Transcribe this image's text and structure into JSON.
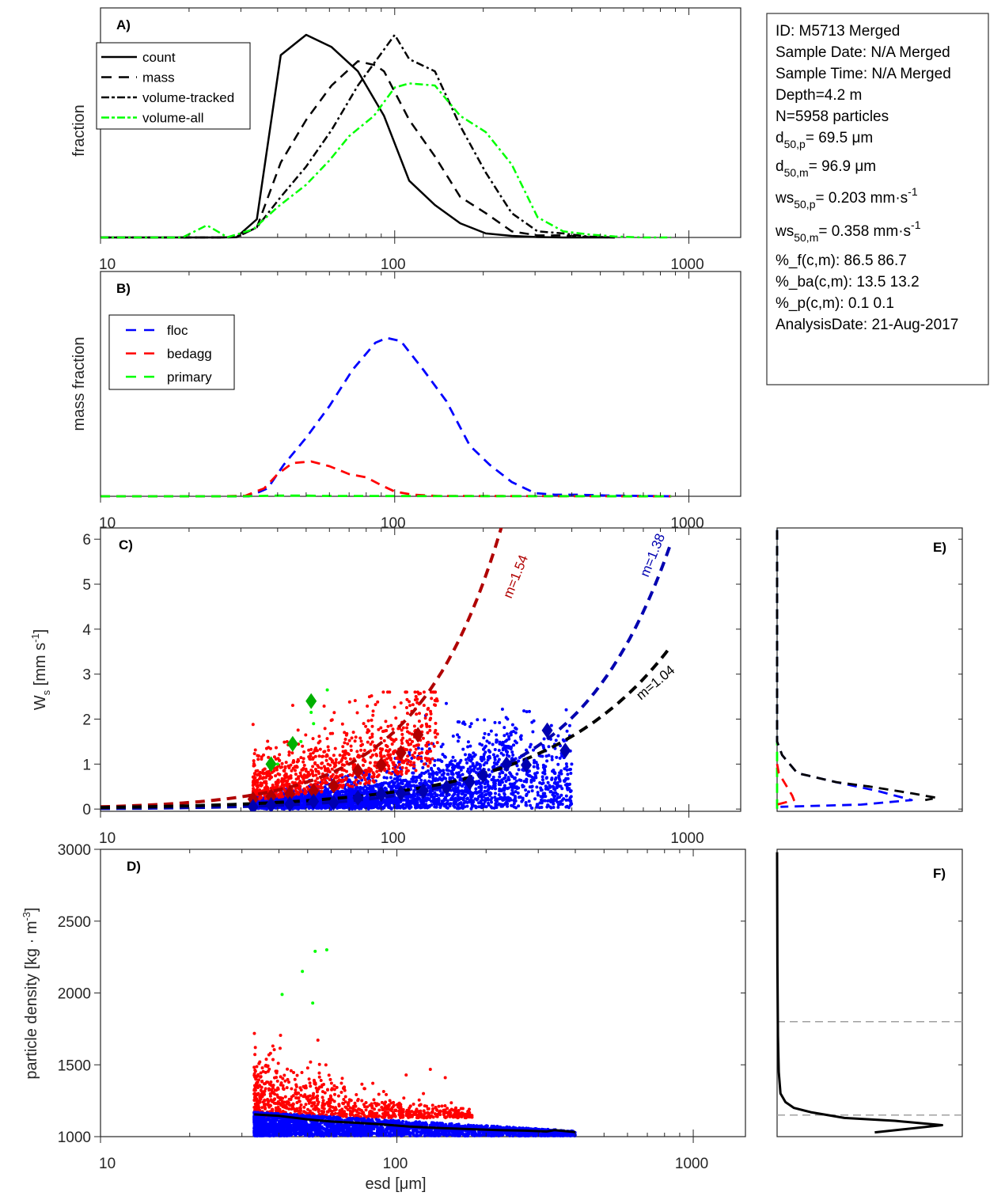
{
  "info_box": {
    "lines": [
      {
        "text": "ID: M5713 Merged"
      },
      {
        "text": "Sample Date: N/A Merged"
      },
      {
        "text": "Sample Time: N/A Merged"
      },
      {
        "text": "Depth=4.2 m"
      },
      {
        "text": "N=5958 particles"
      },
      {
        "base": "d",
        "sub": "50,p",
        "rest": "=  69.5 μm"
      },
      {
        "base": "d",
        "sub": "50,m",
        "rest": "=  96.9 μm"
      },
      {
        "base": "ws",
        "sub": "50,p",
        "rest": "= 0.203 mm·s",
        "sup": "-1"
      },
      {
        "base": "ws",
        "sub": "50,m",
        "rest": "= 0.358 mm·s",
        "sup": "-1"
      },
      {
        "text": "%_f(c,m): 86.5 86.7"
      },
      {
        "text": "%_ba(c,m): 13.5 13.2"
      },
      {
        "text": "%_p(c,m): 0.1 0.1"
      },
      {
        "text": "AnalysisDate: 21-Aug-2017"
      }
    ]
  },
  "colors": {
    "black": "#000000",
    "green": "#00ff00",
    "dark_green": "#00b000",
    "blue": "#0000ff",
    "dark_blue": "#0000b0",
    "red": "#ff0000",
    "dark_red": "#b00000",
    "grey": "#a0a0a0",
    "axis": "#262626"
  },
  "chart_data": [
    {
      "id": "A",
      "panel_label": "A)",
      "type": "line",
      "xscale": "log",
      "xlim": [
        10,
        1500
      ],
      "xticks": [
        10,
        100,
        1000
      ],
      "xtick_labels": [
        "10",
        "100",
        "1000"
      ],
      "ylabel": "fraction",
      "yticks": [],
      "ylim": [
        0,
        1.05
      ],
      "legend": {
        "placement": "top-left",
        "entries": [
          "count",
          "mass",
          "volume-tracked",
          "volume-all"
        ]
      },
      "series": [
        {
          "name": "count",
          "style": "solid",
          "color": "black",
          "x": [
            10,
            12,
            15,
            20,
            25,
            29,
            34,
            41,
            50,
            61,
            75,
            92,
            112,
            137,
            167,
            204,
            250,
            306,
            374,
            457,
            560
          ],
          "y": [
            0,
            0,
            0,
            0,
            0,
            0.001,
            0.09,
            0.9,
            1.0,
            0.94,
            0.82,
            0.6,
            0.28,
            0.16,
            0.07,
            0.02,
            0.008,
            0.002,
            0,
            0,
            0
          ]
        },
        {
          "name": "mass",
          "style": "dashed",
          "color": "black",
          "x": [
            10,
            20,
            25,
            29,
            34,
            41,
            50,
            61,
            75,
            86,
            92,
            112,
            137,
            167,
            204,
            250,
            306,
            374,
            457,
            560
          ],
          "y": [
            0,
            0,
            0,
            0.001,
            0.05,
            0.37,
            0.58,
            0.75,
            0.87,
            0.85,
            0.82,
            0.58,
            0.4,
            0.2,
            0.12,
            0.03,
            0.01,
            0.01,
            0.002,
            0
          ]
        },
        {
          "name": "volume-tracked",
          "style": "dashdot",
          "color": "black",
          "x": [
            10,
            20,
            25,
            29,
            34,
            41,
            50,
            61,
            75,
            100,
            112,
            137,
            167,
            204,
            250,
            306,
            374,
            457,
            560
          ],
          "y": [
            0,
            0,
            0,
            0.001,
            0.05,
            0.2,
            0.35,
            0.53,
            0.75,
            1.0,
            0.88,
            0.82,
            0.55,
            0.32,
            0.12,
            0.03,
            0.02,
            0.004,
            0
          ]
        },
        {
          "name": "volume-all",
          "style": "dashdot",
          "color": "green",
          "x": [
            10,
            15,
            19,
            23,
            27,
            33,
            40,
            50,
            60,
            70,
            85,
            100,
            112,
            137,
            167,
            204,
            250,
            306,
            374,
            457,
            560,
            700,
            870
          ],
          "y": [
            0,
            0,
            0,
            0.06,
            0.001,
            0.04,
            0.15,
            0.26,
            0.38,
            0.5,
            0.6,
            0.74,
            0.76,
            0.75,
            0.6,
            0.52,
            0.36,
            0.1,
            0.03,
            0.015,
            0.005,
            0,
            0
          ]
        }
      ]
    },
    {
      "id": "B",
      "panel_label": "B)",
      "type": "line",
      "xscale": "log",
      "xlim": [
        10,
        1500
      ],
      "xticks": [
        10,
        100,
        1000
      ],
      "xtick_labels": [
        "10",
        "100",
        "1000"
      ],
      "ylabel": "mass fraction",
      "yticks": [],
      "ylim": [
        0,
        1.05
      ],
      "legend": {
        "placement": "top-left",
        "entries": [
          "floc",
          "bedagg",
          "primary"
        ]
      },
      "series": [
        {
          "name": "floc",
          "style": "dashed",
          "color": "blue",
          "x": [
            10,
            25,
            32,
            37,
            42,
            50,
            60,
            72,
            86,
            94,
            105,
            125,
            150,
            180,
            210,
            250,
            300,
            350,
            420,
            520,
            870
          ],
          "y": [
            0,
            0,
            0,
            0.05,
            0.2,
            0.37,
            0.57,
            0.8,
            0.97,
            1.0,
            0.98,
            0.8,
            0.6,
            0.32,
            0.2,
            0.09,
            0.02,
            0.01,
            0.01,
            0.005,
            0
          ]
        },
        {
          "name": "bedagg",
          "style": "dashed",
          "color": "red",
          "x": [
            10,
            25,
            31,
            36,
            40,
            45,
            52,
            60,
            70,
            80,
            90,
            100,
            115,
            140,
            870
          ],
          "y": [
            0,
            0,
            0.003,
            0.05,
            0.14,
            0.21,
            0.22,
            0.19,
            0.14,
            0.12,
            0.07,
            0.03,
            0.01,
            0.002,
            0
          ]
        },
        {
          "name": "primary",
          "style": "dashed",
          "color": "green",
          "x": [
            10,
            30,
            40,
            50,
            60,
            870
          ],
          "y": [
            0,
            0,
            0.004,
            0.004,
            0.002,
            0
          ]
        }
      ]
    },
    {
      "id": "C",
      "panel_label": "C)",
      "type": "scatter",
      "xscale": "log",
      "xlim": [
        10,
        1500
      ],
      "xticks": [
        10,
        100,
        1000
      ],
      "xtick_labels": [
        "10",
        "100",
        "1000"
      ],
      "ylabel": "W_s [mm s^-1]",
      "ylim": [
        -0.05,
        6.25
      ],
      "yticks": [
        0,
        1,
        2,
        3,
        4,
        5,
        6
      ],
      "ytick_labels": [
        "0",
        "1",
        "2",
        "3",
        "4",
        "5",
        "6"
      ],
      "scatter_groups": [
        {
          "name": "floc",
          "color": "blue",
          "count_shown": 2600,
          "x_range": [
            33,
            400
          ],
          "note": "dense cloud, Ws 0-1.5"
        },
        {
          "name": "bedagg",
          "color": "red",
          "count_shown": 900,
          "x_range": [
            33,
            140
          ],
          "note": "upper cloud, Ws 0.1-2.6"
        },
        {
          "name": "primary",
          "color": "green",
          "points": [
            [
              40,
              1.0
            ],
            [
              48,
              1.5
            ],
            [
              52,
              2.15
            ],
            [
              53,
              1.9
            ],
            [
              59,
              2.65
            ]
          ]
        }
      ],
      "binned_means": [
        {
          "name": "primary",
          "color": "dark_green",
          "x": [
            38,
            45,
            52
          ],
          "y": [
            1.0,
            1.45,
            2.4
          ]
        },
        {
          "name": "bedagg",
          "color": "dark_red",
          "x": [
            33,
            38,
            44,
            53,
            62,
            75,
            90,
            105,
            120
          ],
          "y": [
            0.22,
            0.28,
            0.34,
            0.4,
            0.52,
            0.85,
            0.98,
            1.25,
            1.65
          ]
        },
        {
          "name": "floc",
          "color": "dark_blue",
          "x": [
            33,
            38,
            44,
            53,
            62,
            75,
            90,
            105,
            125,
            150,
            180,
            200,
            240,
            280,
            330,
            380
          ],
          "y": [
            0.05,
            0.09,
            0.11,
            0.17,
            0.14,
            0.25,
            0.33,
            0.35,
            0.4,
            0.48,
            0.6,
            0.75,
            1.0,
            0.98,
            1.75,
            1.3
          ]
        }
      ],
      "fits": [
        {
          "name": "bedagg fit",
          "color": "dark_red",
          "label": "m=1.54",
          "coef": 0.00144,
          "exponent": 1.54,
          "x_range": [
            10,
            300
          ]
        },
        {
          "name": "floc fit",
          "color": "dark_blue",
          "label": "m=1.38",
          "coef": 0.00052,
          "exponent": 1.38,
          "x_range": [
            10,
            880
          ]
        },
        {
          "name": "all fit",
          "color": "black",
          "label": "m=1.04",
          "coef": 0.00318,
          "exponent": 1.04,
          "x_range": [
            10,
            880
          ]
        }
      ]
    },
    {
      "id": "D",
      "panel_label": "D)",
      "type": "scatter",
      "xscale": "log",
      "xlim": [
        10,
        1500
      ],
      "xticks": [
        10,
        100,
        1000
      ],
      "xtick_labels": [
        "10",
        "100",
        "1000"
      ],
      "xlabel": "esd [μm]",
      "ylabel": "particle density [kg · m^-3]",
      "ylim": [
        1000,
        3000
      ],
      "yticks": [
        1000,
        1500,
        2000,
        2500,
        3000
      ],
      "ytick_labels": [
        "1000",
        "1500",
        "2000",
        "2500",
        "3000"
      ],
      "scatter_groups": [
        {
          "name": "floc",
          "color": "blue",
          "count_shown": 2600,
          "x_range": [
            33,
            400
          ],
          "note": "density 1005-1170"
        },
        {
          "name": "bedagg",
          "color": "red",
          "count_shown": 900,
          "x_range": [
            33,
            180
          ],
          "note": "density 1100-1750"
        },
        {
          "name": "primary",
          "color": "green",
          "points": [
            [
              41,
              1990
            ],
            [
              48,
              2150
            ],
            [
              52,
              1930
            ],
            [
              53,
              2290
            ],
            [
              58,
              2300
            ]
          ]
        }
      ],
      "mean_line": {
        "name": "mean density",
        "color": "black",
        "x": [
          33,
          40,
          50,
          60,
          75,
          90,
          110,
          140,
          180,
          220,
          270,
          320,
          340,
          400
        ],
        "y": [
          1155,
          1145,
          1120,
          1105,
          1095,
          1085,
          1070,
          1060,
          1052,
          1045,
          1042,
          1036,
          1045,
          1032
        ]
      }
    },
    {
      "id": "E",
      "panel_label": "E)",
      "type": "line",
      "orientation": "horizontal-distribution",
      "ylim": [
        -0.05,
        6.25
      ],
      "yticks": [
        0,
        1,
        2,
        3,
        4,
        5,
        6
      ],
      "xlim": [
        0,
        1.1
      ],
      "series": [
        {
          "name": "all",
          "style": "dashed",
          "color": "black",
          "y": [
            6.2,
            1.5,
            1.2,
            0.8,
            0.6,
            0.5,
            0.35,
            0.25,
            0.2
          ],
          "x": [
            0,
            0,
            0.03,
            0.12,
            0.35,
            0.55,
            0.8,
            0.95,
            0.88
          ]
        },
        {
          "name": "floc",
          "style": "dashed",
          "color": "blue",
          "y": [
            6.2,
            1.5,
            1.2,
            0.8,
            0.6,
            0.4,
            0.2,
            0.1,
            0.05
          ],
          "x": [
            0,
            0,
            0.03,
            0.12,
            0.35,
            0.6,
            0.8,
            0.5,
            0.02
          ]
        },
        {
          "name": "bedagg",
          "style": "dashed",
          "color": "red",
          "y": [
            1.0,
            0.8,
            0.3,
            0.2,
            0.1
          ],
          "x": [
            0,
            0.01,
            0.09,
            0.1,
            0.0
          ]
        },
        {
          "name": "primary",
          "style": "dashed",
          "color": "green",
          "y": [
            6.2,
            0.0
          ],
          "x": [
            0,
            0
          ]
        }
      ]
    },
    {
      "id": "F",
      "panel_label": "F)",
      "type": "line",
      "orientation": "horizontal-distribution",
      "ylim": [
        1000,
        3000
      ],
      "yticks": [
        1000,
        1500,
        2000,
        2500,
        3000
      ],
      "xlim": [
        0,
        1.1
      ],
      "reference_lines": [
        {
          "name": "ref-1800",
          "y": 1800,
          "style": "dashed",
          "color": "grey"
        },
        {
          "name": "ref-1150",
          "y": 1150,
          "style": "dashed",
          "color": "grey"
        }
      ],
      "series": [
        {
          "name": "density distribution",
          "style": "solid",
          "color": "black",
          "y": [
            2980,
            2200,
            1700,
            1450,
            1300,
            1240,
            1200,
            1170,
            1130,
            1110,
            1080,
            1030
          ],
          "x": [
            0,
            0.002,
            0.005,
            0.01,
            0.02,
            0.05,
            0.1,
            0.2,
            0.4,
            0.7,
            0.98,
            0.58
          ]
        }
      ]
    }
  ]
}
